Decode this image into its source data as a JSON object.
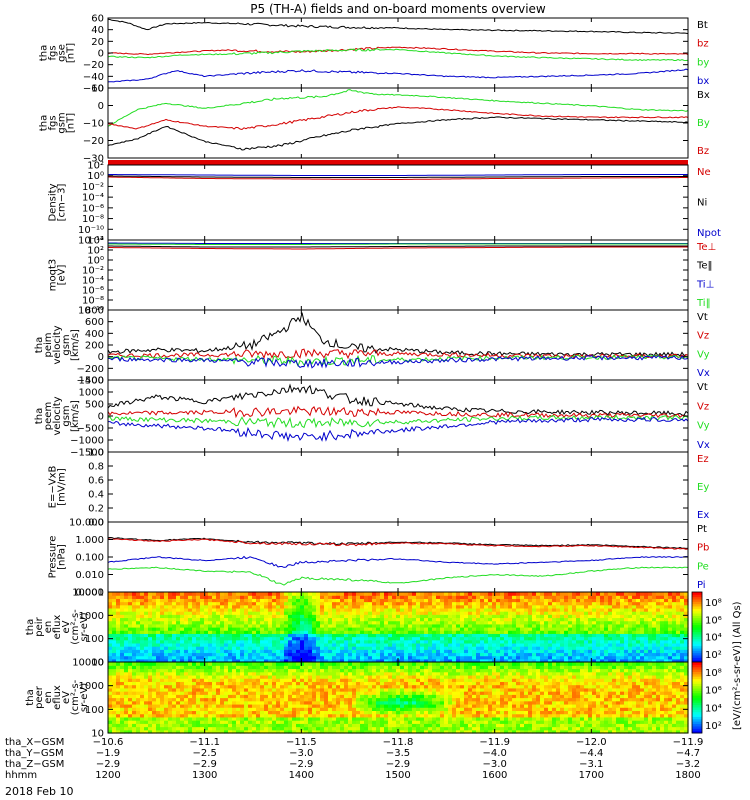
{
  "title": "P5 (TH-A) fields and on-board moments overview",
  "date_label": "2018 Feb 10",
  "colors": {
    "black": "#000000",
    "red": "#d40000",
    "green": "#22dd22",
    "blue": "#0000cc"
  },
  "chart_data": [
    {
      "type": "line",
      "panel": "fgs-gse",
      "ylabel": [
        "tha",
        "fgs",
        "gse",
        "[nT]"
      ],
      "ylim": [
        -60,
        60
      ],
      "yticks": [
        "60",
        "40",
        "20",
        "0",
        "−20",
        "−40",
        "−60"
      ],
      "legend": [
        "Bt",
        "bz",
        "by",
        "bx"
      ],
      "series": [
        {
          "name": "Bt",
          "color": "#000000",
          "x": [
            1200,
            1220,
            1240,
            1260,
            1300,
            1340,
            1400,
            1450,
            1500,
            1550,
            1600,
            1650,
            1700,
            1750,
            1800
          ],
          "y": [
            58,
            52,
            40,
            50,
            52,
            50,
            46,
            44,
            43,
            40,
            39,
            38,
            37,
            35,
            34
          ]
        },
        {
          "name": "bz",
          "color": "#d40000",
          "x": [
            1200,
            1240,
            1280,
            1320,
            1360,
            1400,
            1450,
            1500,
            1550,
            1600,
            1650,
            1700,
            1750,
            1800
          ],
          "y": [
            0,
            -2,
            2,
            5,
            3,
            2,
            6,
            10,
            7,
            3,
            0,
            -1,
            -1,
            -2
          ]
        },
        {
          "name": "by",
          "color": "#22dd22",
          "x": [
            1200,
            1240,
            1280,
            1320,
            1360,
            1400,
            1450,
            1500,
            1550,
            1600,
            1650,
            1700,
            1750,
            1800
          ],
          "y": [
            -6,
            -8,
            -3,
            -2,
            0,
            3,
            5,
            6,
            0,
            -5,
            -8,
            -10,
            -12,
            -12
          ]
        },
        {
          "name": "bx",
          "color": "#0000cc",
          "x": [
            1200,
            1240,
            1270,
            1300,
            1340,
            1400,
            1450,
            1500,
            1550,
            1600,
            1650,
            1700,
            1750,
            1800
          ],
          "y": [
            -50,
            -45,
            -30,
            -40,
            -35,
            -30,
            -33,
            -35,
            -40,
            -42,
            -40,
            -38,
            -35,
            -28
          ]
        }
      ]
    },
    {
      "type": "line",
      "panel": "fgs-gsm",
      "ylabel": [
        "tha",
        "fgs",
        "gsm",
        "[nT]"
      ],
      "ylim": [
        -35,
        20
      ],
      "yticks": [
        "10",
        "0",
        "−10",
        "−20",
        "−30"
      ],
      "legend": [
        "Bx",
        "By",
        "Bz"
      ],
      "series": [
        {
          "name": "By",
          "color": "#22dd22",
          "x": [
            1200,
            1230,
            1260,
            1300,
            1340,
            1380,
            1420,
            1450,
            1480,
            1520,
            1560,
            1600,
            1650,
            1700,
            1750,
            1800
          ],
          "y": [
            -10,
            3,
            8,
            4,
            8,
            12,
            13,
            18,
            15,
            14,
            12,
            10,
            8,
            6,
            3,
            2
          ]
        },
        {
          "name": "Bz",
          "color": "#d40000",
          "x": [
            1200,
            1230,
            1260,
            1300,
            1340,
            1380,
            1420,
            1460,
            1500,
            1550,
            1600,
            1650,
            1700,
            1750,
            1800
          ],
          "y": [
            -8,
            -12,
            -5,
            -10,
            -12,
            -8,
            -3,
            2,
            5,
            3,
            0,
            -2,
            -3,
            -3,
            -3
          ]
        },
        {
          "name": "Bx",
          "color": "#000000",
          "x": [
            1200,
            1230,
            1260,
            1300,
            1340,
            1380,
            1420,
            1460,
            1500,
            1550,
            1600,
            1650,
            1700,
            1750,
            1800
          ],
          "y": [
            -25,
            -20,
            -10,
            -22,
            -28,
            -25,
            -18,
            -12,
            -8,
            -5,
            -3,
            -4,
            -5,
            -6,
            -7
          ]
        }
      ]
    },
    {
      "type": "line",
      "panel": "density",
      "ylabel": [
        "Density",
        "[cm−3]"
      ],
      "ylim_log10": [
        -12,
        3
      ],
      "yticks": [
        "10²",
        "10⁰",
        "10⁻²",
        "10⁻⁴",
        "10⁻⁶",
        "10⁻⁸",
        "10⁻¹⁰",
        "10⁻¹²"
      ],
      "legend": [
        "Ne",
        "Ni",
        "Npot"
      ],
      "series": [
        {
          "name": "Ne",
          "color": "#d40000",
          "x": [
            1200,
            1300,
            1400,
            1500,
            1600,
            1700,
            1800
          ],
          "y_log10": [
            0.6,
            0.3,
            0.2,
            0.1,
            0.3,
            0.4,
            0.5
          ]
        },
        {
          "name": "Ni",
          "color": "#000000",
          "x": [
            1200,
            1300,
            1400,
            1500,
            1600,
            1700,
            1800
          ],
          "y_log10": [
            0.8,
            0.6,
            0.5,
            0.5,
            0.6,
            0.7,
            0.7
          ]
        },
        {
          "name": "Npot",
          "color": "#0000cc",
          "x": [
            1200,
            1300,
            1400,
            1500,
            1600,
            1700,
            1800
          ],
          "y_log10": [
            1.1,
            1.0,
            0.9,
            0.9,
            1.0,
            1.1,
            1.1
          ]
        }
      ]
    },
    {
      "type": "line",
      "panel": "temperature",
      "ylabel": [
        "moqt3",
        "[eV]"
      ],
      "ylim_log10": [
        -10,
        4
      ],
      "yticks": [
        "10⁴",
        "10²",
        "10⁰",
        "10⁻²",
        "10⁻⁴",
        "10⁻⁶",
        "10⁻⁸",
        "10⁻¹⁰"
      ],
      "legend": [
        "Te⊥",
        "Te‖",
        "Ti⊥",
        "Ti‖"
      ],
      "series": [
        {
          "name": "Ti⊥",
          "color": "#0000cc",
          "x": [
            1200,
            1300,
            1400,
            1500,
            1600,
            1700,
            1800
          ],
          "y_log10": [
            3.4,
            3.3,
            3.3,
            3.3,
            3.3,
            3.3,
            3.3
          ]
        },
        {
          "name": "Ti‖",
          "color": "#22dd22",
          "x": [
            1200,
            1300,
            1400,
            1500,
            1600,
            1700,
            1800
          ],
          "y_log10": [
            3.2,
            3.1,
            3.1,
            3.2,
            3.2,
            3.2,
            3.2
          ]
        },
        {
          "name": "Te‖",
          "color": "#000000",
          "x": [
            1200,
            1300,
            1400,
            1500,
            1600,
            1700,
            1800
          ],
          "y_log10": [
            2.8,
            2.6,
            2.6,
            2.7,
            2.8,
            2.8,
            2.8
          ]
        },
        {
          "name": "Te⊥",
          "color": "#d40000",
          "x": [
            1200,
            1300,
            1400,
            1500,
            1600,
            1700,
            1800
          ],
          "y_log10": [
            2.5,
            2.3,
            2.2,
            2.4,
            2.5,
            2.6,
            2.6
          ]
        }
      ]
    },
    {
      "type": "line",
      "panel": "peim-velocity",
      "ylabel": [
        "tha",
        "peim",
        "velocity",
        "gsm",
        "[km/s]"
      ],
      "ylim": [
        -400,
        800
      ],
      "yticks": [
        "800",
        "600",
        "400",
        "200",
        "0",
        "−200",
        "−400"
      ],
      "legend": [
        "Vt",
        "Vz",
        "Vy",
        "Vx"
      ],
      "series": [
        {
          "name": "Vt",
          "color": "#000000",
          "x": [
            1200,
            1250,
            1300,
            1350,
            1380,
            1400,
            1420,
            1450,
            1500,
            1550,
            1600,
            1700,
            1800
          ],
          "y": [
            80,
            120,
            100,
            200,
            450,
            700,
            300,
            150,
            120,
            70,
            50,
            40,
            40
          ]
        },
        {
          "name": "Vz",
          "color": "#d40000",
          "x": [
            1200,
            1300,
            1400,
            1500,
            1600,
            1700,
            1800
          ],
          "y": [
            20,
            30,
            60,
            50,
            20,
            10,
            10
          ]
        },
        {
          "name": "Vy",
          "color": "#22dd22",
          "x": [
            1200,
            1300,
            1400,
            1500,
            1600,
            1700,
            1800
          ],
          "y": [
            -20,
            -40,
            -80,
            -50,
            -20,
            -10,
            -10
          ]
        },
        {
          "name": "Vx",
          "color": "#0000cc",
          "x": [
            1200,
            1300,
            1400,
            1500,
            1600,
            1700,
            1800
          ],
          "y": [
            -40,
            -60,
            -120,
            -90,
            -40,
            -20,
            -20
          ]
        }
      ]
    },
    {
      "type": "line",
      "panel": "peem-velocity",
      "ylabel": [
        "tha",
        "peem",
        "velocity",
        "gsm",
        "[km/s]"
      ],
      "ylim": [
        -1500,
        1500
      ],
      "yticks": [
        "1500",
        "1000",
        "500",
        "0",
        "−500",
        "−1000",
        "−1500"
      ],
      "legend": [
        "Vt",
        "Vz",
        "Vy",
        "Vx"
      ],
      "series": [
        {
          "name": "Vt",
          "color": "#000000",
          "x": [
            1200,
            1250,
            1300,
            1350,
            1400,
            1450,
            1500,
            1550,
            1600,
            1700,
            1800
          ],
          "y": [
            400,
            800,
            600,
            900,
            1200,
            700,
            500,
            300,
            200,
            150,
            100
          ]
        },
        {
          "name": "Vz",
          "color": "#d40000",
          "x": [
            1200,
            1300,
            1400,
            1500,
            1600,
            1700,
            1800
          ],
          "y": [
            100,
            150,
            200,
            150,
            50,
            30,
            30
          ]
        },
        {
          "name": "Vy",
          "color": "#22dd22",
          "x": [
            1200,
            1300,
            1400,
            1500,
            1600,
            1700,
            1800
          ],
          "y": [
            -100,
            -200,
            -300,
            -250,
            -100,
            -60,
            -60
          ]
        },
        {
          "name": "Vx",
          "color": "#0000cc",
          "x": [
            1200,
            1300,
            1400,
            1500,
            1600,
            1700,
            1800
          ],
          "y": [
            -300,
            -500,
            -900,
            -600,
            -250,
            -150,
            -150
          ]
        }
      ]
    },
    {
      "type": "line",
      "panel": "e-field",
      "ylabel": [
        "E=−VxB",
        "[mV/m]"
      ],
      "ylim": [
        0,
        1
      ],
      "yticks": [
        "1.0",
        "0.8",
        "0.6",
        "0.4",
        "0.2",
        "0.0"
      ],
      "legend": [
        "Ez",
        "Ey",
        "Ex"
      ],
      "series": []
    },
    {
      "type": "line",
      "panel": "pressure",
      "ylabel": [
        "Pressure",
        "[nPa]"
      ],
      "ylim_log10": [
        -3,
        1
      ],
      "yticks": [
        "10.000",
        "1.000",
        "0.100",
        "0.010",
        "0.001"
      ],
      "legend": [
        "Pt",
        "Pb",
        "Pe",
        "Pi"
      ],
      "series": [
        {
          "name": "Pt",
          "color": "#000000",
          "x": [
            1200,
            1250,
            1300,
            1350,
            1400,
            1450,
            1500,
            1550,
            1600,
            1650,
            1700,
            1750,
            1800
          ],
          "y_log10": [
            0.1,
            -0.05,
            0.05,
            -0.15,
            -0.2,
            -0.25,
            -0.15,
            -0.2,
            -0.3,
            -0.35,
            -0.3,
            -0.4,
            -0.5
          ]
        },
        {
          "name": "Pb",
          "color": "#d40000",
          "x": [
            1200,
            1250,
            1300,
            1350,
            1400,
            1450,
            1500,
            1550,
            1600,
            1650,
            1700,
            1750,
            1800
          ],
          "y_log10": [
            0.05,
            -0.1,
            0.0,
            -0.2,
            -0.25,
            -0.3,
            -0.2,
            -0.25,
            -0.35,
            -0.4,
            -0.35,
            -0.45,
            -0.55
          ]
        },
        {
          "name": "Pi",
          "color": "#0000cc",
          "x": [
            1200,
            1250,
            1300,
            1350,
            1380,
            1400,
            1450,
            1500,
            1550,
            1600,
            1650,
            1700,
            1750,
            1800
          ],
          "y_log10": [
            -1.3,
            -1.0,
            -1.2,
            -1.0,
            -1.6,
            -1.3,
            -1.2,
            -1.1,
            -1.3,
            -1.4,
            -1.3,
            -1.2,
            -1.0,
            -1.0
          ]
        },
        {
          "name": "Pe",
          "color": "#22dd22",
          "x": [
            1200,
            1250,
            1300,
            1350,
            1380,
            1400,
            1450,
            1500,
            1550,
            1600,
            1650,
            1700,
            1750,
            1800
          ],
          "y_log10": [
            -1.7,
            -1.6,
            -1.8,
            -1.9,
            -2.6,
            -2.2,
            -2.3,
            -2.5,
            -2.2,
            -2.0,
            -2.1,
            -1.8,
            -1.6,
            -1.6
          ]
        }
      ]
    },
    {
      "type": "heatmap",
      "panel": "peir-spectrogram",
      "ylabel": [
        "tha",
        "peir",
        "en",
        "eflux",
        "eV",
        "(cm²-s-",
        "sr-eV)"
      ],
      "ylim_log10": [
        0.7,
        4.4
      ],
      "yticks": [
        "10000",
        "1000",
        "100",
        "10"
      ],
      "colorbar": {
        "ticks": [
          "10⁸",
          "10⁶",
          "10⁴",
          "10²"
        ],
        "label": "[eV/(cm²-s-sr-eV)] (All Qs)"
      }
    },
    {
      "type": "heatmap",
      "panel": "peer-spectrogram",
      "ylabel": [
        "tha",
        "peer",
        "en",
        "eflux",
        "eV",
        "(cm²-s-",
        "sr-eV)"
      ],
      "ylim_log10": [
        0.7,
        4.4
      ],
      "yticks": [
        "10000",
        "1000",
        "100",
        "10"
      ],
      "colorbar": {
        "ticks": [
          "10⁸",
          "10⁶",
          "10⁴",
          "10²"
        ]
      }
    }
  ],
  "xaxis": {
    "range": [
      1200,
      1800
    ],
    "rows": [
      {
        "label": "tha_X−GSM",
        "values": [
          "−10.6",
          "−11.1",
          "−11.5",
          "−11.8",
          "−11.9",
          "−12.0",
          "−11.9"
        ]
      },
      {
        "label": "tha_Y−GSM",
        "values": [
          "−1.9",
          "−2.5",
          "−3.0",
          "−3.5",
          "−4.0",
          "−4.4",
          "−4.7"
        ]
      },
      {
        "label": "tha_Z−GSM",
        "values": [
          "−2.9",
          "−2.9",
          "−2.9",
          "−2.9",
          "−3.0",
          "−3.1",
          "−3.2"
        ]
      },
      {
        "label": "hhmm",
        "values": [
          "1200",
          "1300",
          "1400",
          "1500",
          "1600",
          "1700",
          "1800"
        ]
      }
    ]
  }
}
